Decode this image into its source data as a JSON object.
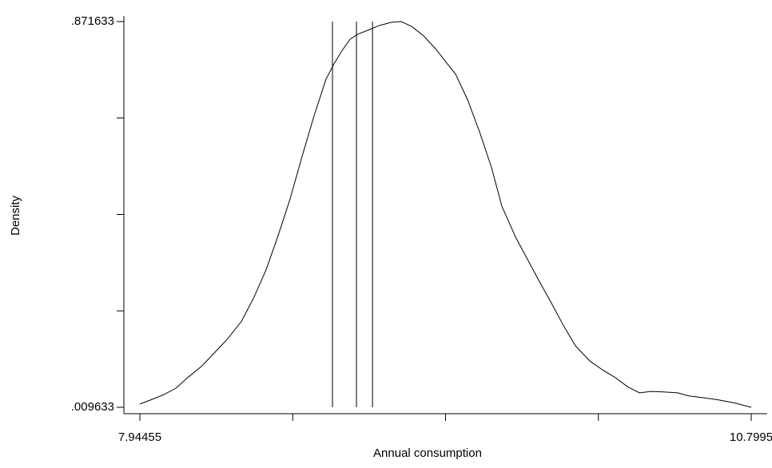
{
  "chart_data": {
    "type": "line",
    "x_label": "Annual consumption",
    "y_label": "Density",
    "xlim": [
      7.94455,
      10.7995
    ],
    "ylim": [
      0.009633,
      0.871633
    ],
    "xticks": [
      {
        "value": 7.94455,
        "label": "7.94455"
      },
      8.65829,
      9.37203,
      10.08576,
      {
        "value": 10.7995,
        "label": "10.7995"
      }
    ],
    "yticks": [
      {
        "value": 0.009633,
        "label": ".009633"
      },
      0.225133,
      0.440633,
      0.656133,
      {
        "value": 0.871633,
        "label": ".871633"
      }
    ],
    "reference_lines": [
      8.844,
      8.956,
      9.031
    ],
    "color": "#000000",
    "x": [
      7.945,
      8.0,
      8.057,
      8.112,
      8.168,
      8.232,
      8.292,
      8.355,
      8.418,
      8.478,
      8.534,
      8.59,
      8.646,
      8.702,
      8.758,
      8.814,
      8.851,
      8.889,
      8.926,
      8.96,
      9.008,
      9.064,
      9.12,
      9.165,
      9.213,
      9.269,
      9.325,
      9.381,
      9.419,
      9.475,
      9.531,
      9.587,
      9.635,
      9.699,
      9.755,
      9.811,
      9.867,
      9.923,
      9.979,
      10.046,
      10.109,
      10.165,
      10.221,
      10.277,
      10.333,
      10.389,
      10.456,
      10.508,
      10.576,
      10.65,
      10.725,
      10.7995
    ],
    "values": [
      0.017,
      0.027,
      0.038,
      0.052,
      0.076,
      0.101,
      0.131,
      0.163,
      0.201,
      0.256,
      0.317,
      0.393,
      0.475,
      0.57,
      0.661,
      0.743,
      0.777,
      0.807,
      0.832,
      0.843,
      0.852,
      0.863,
      0.87,
      0.8716,
      0.861,
      0.84,
      0.811,
      0.777,
      0.754,
      0.697,
      0.625,
      0.545,
      0.459,
      0.39,
      0.34,
      0.29,
      0.242,
      0.192,
      0.147,
      0.113,
      0.092,
      0.076,
      0.056,
      0.042,
      0.045,
      0.044,
      0.042,
      0.035,
      0.031,
      0.026,
      0.019,
      0.0096
    ]
  }
}
